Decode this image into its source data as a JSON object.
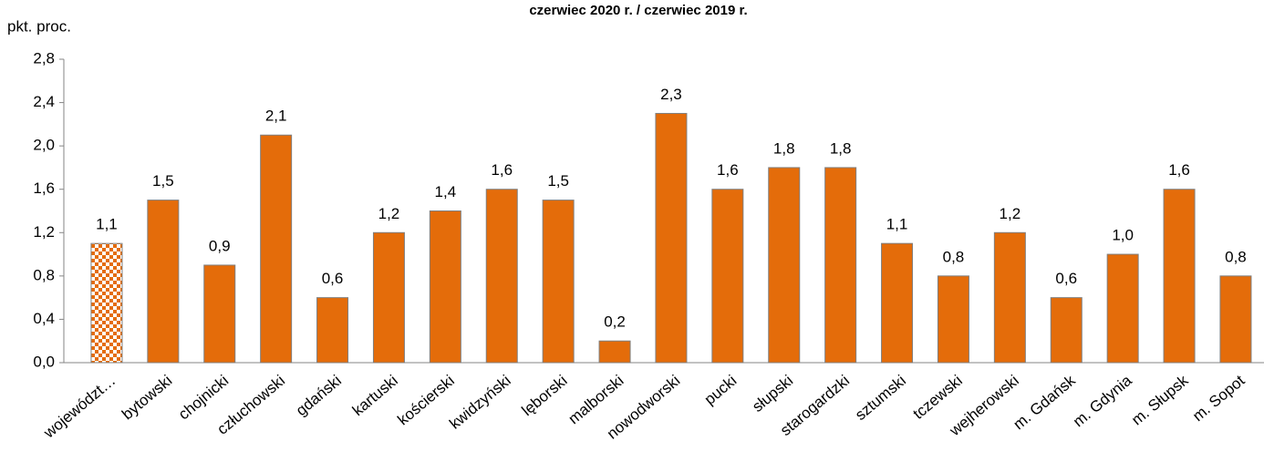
{
  "chart_data": {
    "type": "bar",
    "title": "czerwiec 2020 r. / czerwiec 2019 r.",
    "y_label": "pkt. proc.",
    "categories": [
      "województ…",
      "bytowski",
      "chojnicki",
      "człuchowski",
      "gdański",
      "kartuski",
      "kościerski",
      "kwidzyński",
      "lęborski",
      "malborski",
      "nowodworski",
      "pucki",
      "słupski",
      "starogardzki",
      "sztumski",
      "tczewski",
      "wejherowski",
      "m. Gdańsk",
      "m. Gdynia",
      "m. Słupsk",
      "m. Sopot"
    ],
    "values": [
      1.1,
      1.5,
      0.9,
      2.1,
      0.6,
      1.2,
      1.4,
      1.6,
      1.5,
      0.2,
      2.3,
      1.6,
      1.8,
      1.8,
      1.1,
      0.8,
      1.2,
      0.6,
      1.0,
      1.6,
      0.8
    ],
    "value_labels": [
      "1,1",
      "1,5",
      "0,9",
      "2,1",
      "0,6",
      "1,2",
      "1,4",
      "1,6",
      "1,5",
      "0,2",
      "2,3",
      "1,6",
      "1,8",
      "1,8",
      "1,1",
      "0,8",
      "1,2",
      "0,6",
      "1,0",
      "1,6",
      "0,8"
    ],
    "color": "#e46c0a",
    "ylim": [
      0,
      2.8
    ],
    "yticks": [
      {
        "value": 0,
        "label": "0,0"
      },
      {
        "value": 0.4,
        "label": "0,4"
      },
      {
        "value": 0.8,
        "label": "0,8"
      },
      {
        "value": 1.2,
        "label": "1,2"
      },
      {
        "value": 1.6,
        "label": "1,6"
      },
      {
        "value": 2.0,
        "label": "2,0"
      },
      {
        "value": 2.4,
        "label": "2,4"
      },
      {
        "value": 2.8,
        "label": "2,8"
      }
    ],
    "grid": false
  }
}
